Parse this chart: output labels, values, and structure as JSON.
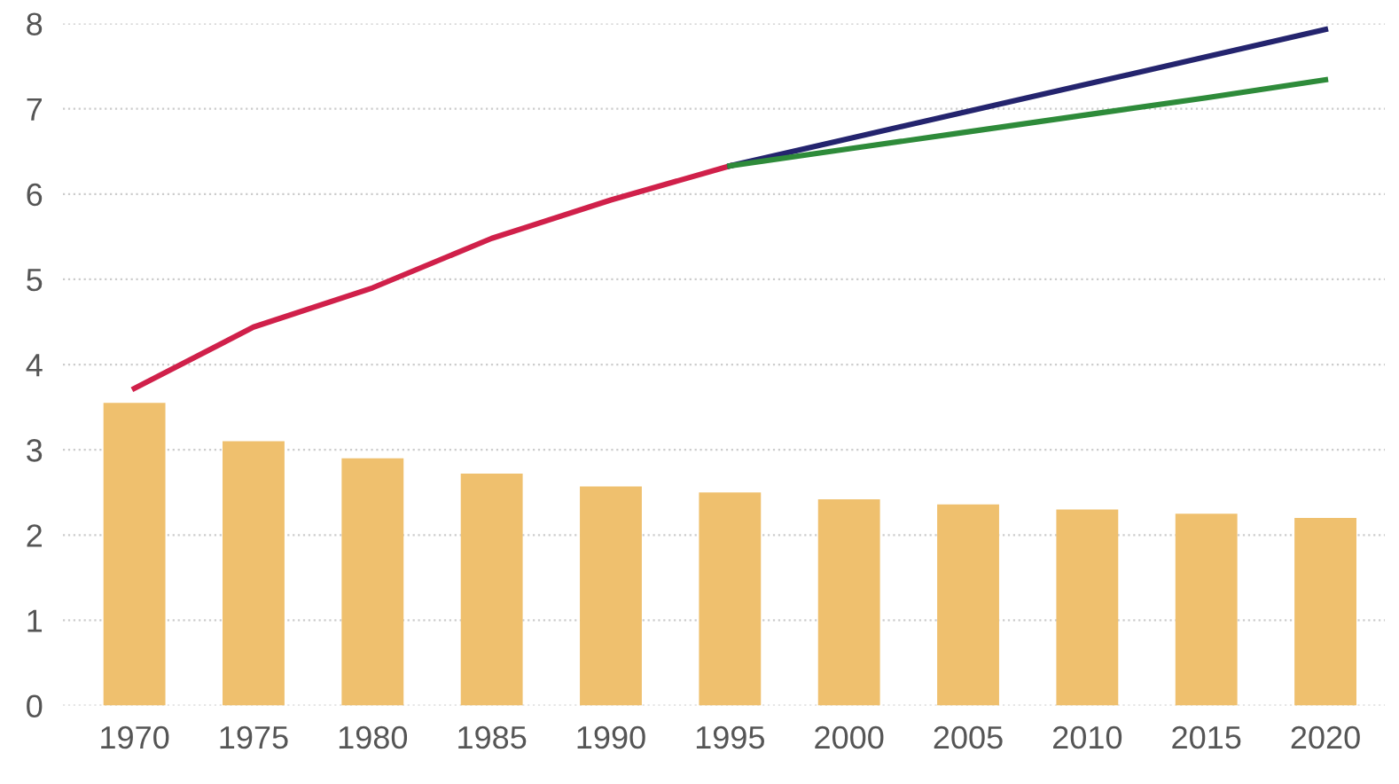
{
  "chart_data": {
    "type": "bar",
    "categories": [
      "1970",
      "1975",
      "1980",
      "1985",
      "1990",
      "1995",
      "2000",
      "2005",
      "2010",
      "2015",
      "2020"
    ],
    "series": [
      {
        "color": "#efc06e",
        "values": [
          3.55,
          3.1,
          2.9,
          2.72,
          2.57,
          2.5,
          2.42,
          2.36,
          2.3,
          2.25,
          2.2
        ]
      },
      {
        "type": "line",
        "color": "#d0204a",
        "values": [
          3.72,
          4.44,
          4.9,
          5.48,
          5.93,
          6.33,
          null,
          null,
          null,
          null,
          null
        ]
      },
      {
        "type": "line",
        "color": "#24246e",
        "values": [
          null,
          null,
          null,
          null,
          null,
          6.33,
          6.65,
          6.97,
          7.29,
          7.61,
          7.93
        ]
      },
      {
        "type": "line",
        "color": "#2e8b3a",
        "values": [
          null,
          null,
          null,
          null,
          null,
          6.33,
          6.53,
          6.73,
          6.93,
          7.13,
          7.34
        ]
      }
    ],
    "ylim": [
      0,
      8
    ],
    "yticks": [
      0,
      1,
      2,
      3,
      4,
      5,
      6,
      7,
      8
    ],
    "grid": "y",
    "legend": false
  }
}
